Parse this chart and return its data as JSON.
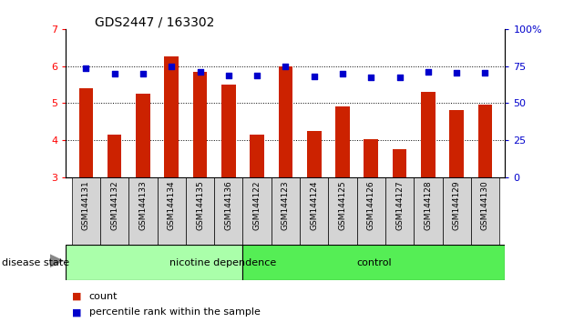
{
  "title": "GDS2447 / 163302",
  "samples": [
    "GSM144131",
    "GSM144132",
    "GSM144133",
    "GSM144134",
    "GSM144135",
    "GSM144136",
    "GSM144122",
    "GSM144123",
    "GSM144124",
    "GSM144125",
    "GSM144126",
    "GSM144127",
    "GSM144128",
    "GSM144129",
    "GSM144130"
  ],
  "bar_values": [
    5.4,
    4.15,
    5.25,
    6.25,
    5.85,
    5.5,
    4.15,
    6.0,
    4.25,
    4.9,
    4.02,
    3.75,
    5.3,
    4.8,
    4.95
  ],
  "dot_values": [
    5.93,
    5.8,
    5.8,
    6.0,
    5.85,
    5.75,
    5.75,
    6.0,
    5.73,
    5.8,
    5.7,
    5.7,
    5.85,
    5.82,
    5.82
  ],
  "group1_count": 6,
  "group2_count": 9,
  "group1_label": "nicotine dependence",
  "group2_label": "control",
  "ylim_left": [
    3,
    7
  ],
  "ylim_right": [
    0,
    100
  ],
  "yticks_left": [
    3,
    4,
    5,
    6,
    7
  ],
  "yticks_right": [
    0,
    25,
    50,
    75,
    100
  ],
  "ytick_labels_right": [
    "0",
    "25",
    "50",
    "75",
    "100%"
  ],
  "bar_color": "#cc2200",
  "dot_color": "#0000cc",
  "group1_color": "#aaffaa",
  "group2_color": "#55ee55",
  "bar_base": 3,
  "legend_count_label": "count",
  "legend_pct_label": "percentile rank within the sample",
  "disease_state_label": "disease state"
}
